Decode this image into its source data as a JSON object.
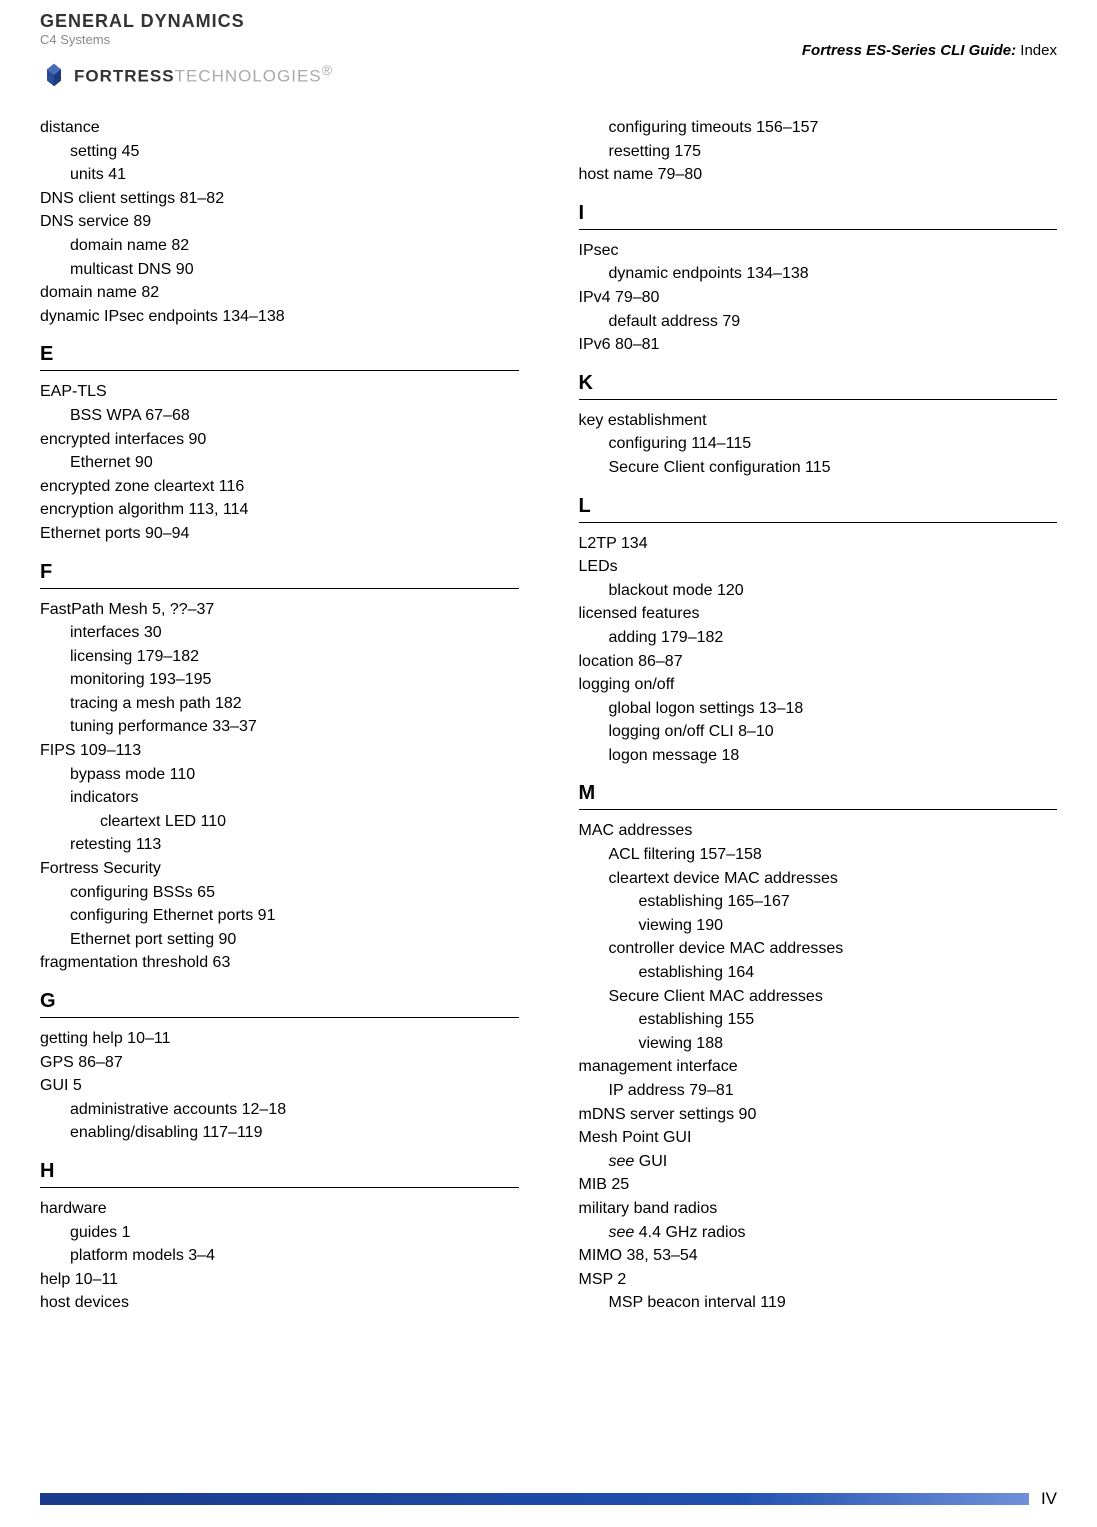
{
  "header": {
    "gd_line1": "GENERAL DYNAMICS",
    "gd_line2": "C4 Systems",
    "fortress_bold": "FORTRESS",
    "fortress_light": "TECHNOLOGIES",
    "fortress_reg": "®",
    "guide_italic": "Fortress ES-Series CLI Guide:",
    "guide_plain": " Index"
  },
  "left": [
    {
      "t": "distance"
    },
    {
      "t": "setting 45",
      "c": "i1"
    },
    {
      "t": "units 41",
      "c": "i1"
    },
    {
      "t": "DNS client settings 81–82"
    },
    {
      "t": "DNS service 89"
    },
    {
      "t": "domain name 82",
      "c": "i1"
    },
    {
      "t": "multicast DNS 90",
      "c": "i1"
    },
    {
      "t": "domain name 82"
    },
    {
      "t": "dynamic IPsec endpoints 134–138"
    },
    {
      "t": "E",
      "c": "section-letter"
    },
    {
      "t": "EAP-TLS"
    },
    {
      "t": "BSS WPA 67–68",
      "c": "i1"
    },
    {
      "t": "encrypted interfaces 90"
    },
    {
      "t": "Ethernet 90",
      "c": "i1"
    },
    {
      "t": "encrypted zone cleartext 116"
    },
    {
      "t": "encryption algorithm 113, 114"
    },
    {
      "t": "Ethernet ports 90–94"
    },
    {
      "t": "F",
      "c": "section-letter"
    },
    {
      "t": "FastPath Mesh 5, ??–37"
    },
    {
      "t": "interfaces 30",
      "c": "i1"
    },
    {
      "t": "licensing 179–182",
      "c": "i1"
    },
    {
      "t": "monitoring 193–195",
      "c": "i1"
    },
    {
      "t": "tracing a mesh path 182",
      "c": "i1"
    },
    {
      "t": "tuning performance 33–37",
      "c": "i1"
    },
    {
      "t": "FIPS 109–113"
    },
    {
      "t": "bypass mode 110",
      "c": "i1"
    },
    {
      "t": "indicators",
      "c": "i1"
    },
    {
      "t": "cleartext LED 110",
      "c": "i2"
    },
    {
      "t": "retesting 113",
      "c": "i1"
    },
    {
      "t": "Fortress Security"
    },
    {
      "t": "configuring BSSs 65",
      "c": "i1"
    },
    {
      "t": "configuring Ethernet ports 91",
      "c": "i1"
    },
    {
      "t": "Ethernet port setting 90",
      "c": "i1"
    },
    {
      "t": "fragmentation threshold 63"
    },
    {
      "t": "G",
      "c": "section-letter"
    },
    {
      "t": "getting help 10–11"
    },
    {
      "t": "GPS 86–87"
    },
    {
      "t": "GUI 5"
    },
    {
      "t": "administrative accounts 12–18",
      "c": "i1"
    },
    {
      "t": "enabling/disabling 117–119",
      "c": "i1"
    },
    {
      "t": "H",
      "c": "section-letter"
    },
    {
      "t": "hardware"
    },
    {
      "t": "guides 1",
      "c": "i1"
    },
    {
      "t": "platform models 3–4",
      "c": "i1"
    },
    {
      "t": "help 10–11"
    },
    {
      "t": "host devices"
    }
  ],
  "right": [
    {
      "t": "configuring timeouts 156–157",
      "c": "i1"
    },
    {
      "t": "resetting 175",
      "c": "i1"
    },
    {
      "t": "host name 79–80"
    },
    {
      "t": "I",
      "c": "section-letter"
    },
    {
      "t": "IPsec"
    },
    {
      "t": "dynamic endpoints 134–138",
      "c": "i1"
    },
    {
      "t": "IPv4 79–80"
    },
    {
      "t": "default address 79",
      "c": "i1"
    },
    {
      "t": "IPv6 80–81"
    },
    {
      "t": "K",
      "c": "section-letter"
    },
    {
      "t": "key establishment"
    },
    {
      "t": "configuring 114–115",
      "c": "i1"
    },
    {
      "t": "Secure Client configuration 115",
      "c": "i1"
    },
    {
      "t": "L",
      "c": "section-letter"
    },
    {
      "t": "L2TP 134"
    },
    {
      "t": "LEDs"
    },
    {
      "t": "blackout mode 120",
      "c": "i1"
    },
    {
      "t": "licensed features"
    },
    {
      "t": "adding 179–182",
      "c": "i1"
    },
    {
      "t": "location 86–87"
    },
    {
      "t": "logging on/off"
    },
    {
      "t": "global logon settings 13–18",
      "c": "i1"
    },
    {
      "t": "logging on/off CLI 8–10",
      "c": "i1"
    },
    {
      "t": "logon message 18",
      "c": "i1"
    },
    {
      "t": "M",
      "c": "section-letter"
    },
    {
      "t": "MAC addresses"
    },
    {
      "t": "ACL filtering 157–158",
      "c": "i1"
    },
    {
      "t": "cleartext device MAC addresses",
      "c": "i1"
    },
    {
      "t": "establishing 165–167",
      "c": "i2"
    },
    {
      "t": "viewing 190",
      "c": "i2"
    },
    {
      "t": "controller device MAC addresses",
      "c": "i1"
    },
    {
      "t": "establishing 164",
      "c": "i2"
    },
    {
      "t": "Secure Client MAC addresses",
      "c": "i1"
    },
    {
      "t": "establishing 155",
      "c": "i2"
    },
    {
      "t": "viewing 188",
      "c": "i2"
    },
    {
      "t": "management interface"
    },
    {
      "t": "IP address 79–81",
      "c": "i1"
    },
    {
      "t": "mDNS server settings 90"
    },
    {
      "t": "Mesh Point GUI"
    },
    {
      "pre": "see ",
      "post": "GUI",
      "c": "i1",
      "italic": true
    },
    {
      "t": "MIB 25"
    },
    {
      "t": "military band radios"
    },
    {
      "pre": "see ",
      "post": "4.4 GHz radios",
      "c": "i1",
      "italic": true
    },
    {
      "t": "MIMO 38, 53–54"
    },
    {
      "t": "MSP 2"
    },
    {
      "t": "MSP beacon interval 119",
      "c": "i1"
    }
  ],
  "footer": {
    "page": "IV"
  }
}
